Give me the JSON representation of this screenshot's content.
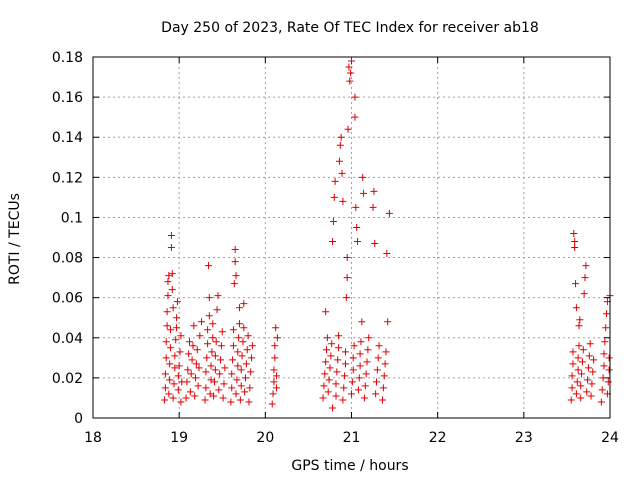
{
  "chart_data": {
    "type": "scatter",
    "title": "Day 250 of 2023, Rate Of TEC Index for receiver ab18",
    "xlabel": "GPS time / hours",
    "ylabel": "ROTI / TECUs",
    "xlim": [
      18,
      24
    ],
    "ylim": [
      0,
      0.18
    ],
    "x_ticks": [
      "18",
      "19",
      "20",
      "21",
      "22",
      "23",
      "24"
    ],
    "y_ticks": [
      "0",
      "0.02",
      "0.04",
      "0.06",
      "0.08",
      "0.1",
      "0.12",
      "0.14",
      "0.16",
      "0.18"
    ],
    "grid": true,
    "marker": "+",
    "color": "#e00000",
    "series": [
      {
        "points": [
          [
            18.83,
            0.009
          ],
          [
            18.84,
            0.015
          ],
          [
            18.84,
            0.022
          ],
          [
            18.85,
            0.03
          ],
          [
            18.85,
            0.038
          ],
          [
            18.86,
            0.046
          ],
          [
            18.86,
            0.053
          ],
          [
            18.87,
            0.061
          ],
          [
            18.87,
            0.068
          ],
          [
            18.88,
            0.071
          ],
          [
            18.88,
            0.012
          ],
          [
            18.89,
            0.019
          ],
          [
            18.89,
            0.027
          ],
          [
            18.9,
            0.035
          ],
          [
            18.9,
            0.044
          ],
          [
            18.91,
            0.085
          ],
          [
            18.91,
            0.091
          ],
          [
            18.92,
            0.072
          ],
          [
            18.92,
            0.064
          ],
          [
            18.93,
            0.055
          ],
          [
            18.93,
            0.01
          ],
          [
            18.94,
            0.017
          ],
          [
            18.95,
            0.025
          ],
          [
            18.95,
            0.031
          ],
          [
            18.96,
            0.039
          ],
          [
            18.97,
            0.045
          ],
          [
            18.97,
            0.05
          ],
          [
            18.98,
            0.058
          ],
          [
            18.99,
            0.014
          ],
          [
            18.99,
            0.021
          ],
          [
            19.0,
            0.026
          ],
          [
            19.01,
            0.033
          ],
          [
            19.02,
            0.041
          ],
          [
            19.02,
            0.008
          ],
          [
            19.03,
            0.018
          ],
          [
            19.08,
            0.01
          ],
          [
            19.09,
            0.018
          ],
          [
            19.1,
            0.024
          ],
          [
            19.11,
            0.032
          ],
          [
            19.12,
            0.038
          ],
          [
            19.13,
            0.013
          ],
          [
            19.14,
            0.022
          ],
          [
            19.15,
            0.029
          ],
          [
            19.16,
            0.036
          ],
          [
            19.17,
            0.046
          ],
          [
            19.18,
            0.011
          ],
          [
            19.19,
            0.02
          ],
          [
            19.2,
            0.027
          ],
          [
            19.21,
            0.034
          ],
          [
            19.22,
            0.016
          ],
          [
            19.23,
            0.025
          ],
          [
            19.24,
            0.041
          ],
          [
            19.26,
            0.048
          ],
          [
            19.3,
            0.009
          ],
          [
            19.31,
            0.015
          ],
          [
            19.31,
            0.023
          ],
          [
            19.32,
            0.03
          ],
          [
            19.33,
            0.037
          ],
          [
            19.33,
            0.044
          ],
          [
            19.34,
            0.076
          ],
          [
            19.35,
            0.06
          ],
          [
            19.35,
            0.051
          ],
          [
            19.36,
            0.012
          ],
          [
            19.37,
            0.019
          ],
          [
            19.37,
            0.026
          ],
          [
            19.38,
            0.033
          ],
          [
            19.39,
            0.04
          ],
          [
            19.39,
            0.047
          ],
          [
            19.4,
            0.011
          ],
          [
            19.41,
            0.018
          ],
          [
            19.42,
            0.024
          ],
          [
            19.42,
            0.031
          ],
          [
            19.43,
            0.038
          ],
          [
            19.44,
            0.054
          ],
          [
            19.45,
            0.061
          ],
          [
            19.46,
            0.014
          ],
          [
            19.47,
            0.022
          ],
          [
            19.48,
            0.029
          ],
          [
            19.49,
            0.036
          ],
          [
            19.5,
            0.043
          ],
          [
            19.51,
            0.01
          ],
          [
            19.52,
            0.017
          ],
          [
            19.53,
            0.025
          ],
          [
            19.6,
            0.008
          ],
          [
            19.61,
            0.015
          ],
          [
            19.61,
            0.022
          ],
          [
            19.62,
            0.029
          ],
          [
            19.63,
            0.036
          ],
          [
            19.63,
            0.044
          ],
          [
            19.64,
            0.067
          ],
          [
            19.65,
            0.078
          ],
          [
            19.65,
            0.084
          ],
          [
            19.66,
            0.071
          ],
          [
            19.66,
            0.012
          ],
          [
            19.67,
            0.019
          ],
          [
            19.68,
            0.026
          ],
          [
            19.68,
            0.033
          ],
          [
            19.69,
            0.04
          ],
          [
            19.7,
            0.047
          ],
          [
            19.7,
            0.055
          ],
          [
            19.71,
            0.009
          ],
          [
            19.72,
            0.016
          ],
          [
            19.72,
            0.024
          ],
          [
            19.73,
            0.031
          ],
          [
            19.74,
            0.038
          ],
          [
            19.75,
            0.045
          ],
          [
            19.75,
            0.057
          ],
          [
            19.76,
            0.013
          ],
          [
            19.77,
            0.02
          ],
          [
            19.78,
            0.027
          ],
          [
            19.79,
            0.034
          ],
          [
            19.8,
            0.041
          ],
          [
            19.81,
            0.008
          ],
          [
            19.82,
            0.015
          ],
          [
            19.83,
            0.023
          ],
          [
            19.84,
            0.03
          ],
          [
            19.85,
            0.036
          ],
          [
            20.08,
            0.007
          ],
          [
            20.09,
            0.012
          ],
          [
            20.1,
            0.018
          ],
          [
            20.1,
            0.024
          ],
          [
            20.11,
            0.03
          ],
          [
            20.11,
            0.036
          ],
          [
            20.12,
            0.045
          ],
          [
            20.13,
            0.015
          ],
          [
            20.13,
            0.021
          ],
          [
            20.14,
            0.04
          ],
          [
            20.67,
            0.01
          ],
          [
            20.68,
            0.016
          ],
          [
            20.69,
            0.022
          ],
          [
            20.7,
            0.028
          ],
          [
            20.7,
            0.053
          ],
          [
            20.71,
            0.034
          ],
          [
            20.72,
            0.04
          ],
          [
            20.73,
            0.013
          ],
          [
            20.74,
            0.019
          ],
          [
            20.75,
            0.025
          ],
          [
            20.76,
            0.031
          ],
          [
            20.77,
            0.037
          ],
          [
            20.78,
            0.005
          ],
          [
            20.78,
            0.088
          ],
          [
            20.79,
            0.098
          ],
          [
            20.8,
            0.11
          ],
          [
            20.81,
            0.118
          ],
          [
            20.82,
            0.011
          ],
          [
            20.82,
            0.017
          ],
          [
            20.83,
            0.023
          ],
          [
            20.84,
            0.029
          ],
          [
            20.85,
            0.035
          ],
          [
            20.85,
            0.041
          ],
          [
            20.86,
            0.128
          ],
          [
            20.87,
            0.136
          ],
          [
            20.88,
            0.14
          ],
          [
            20.89,
            0.122
          ],
          [
            20.9,
            0.108
          ],
          [
            20.9,
            0.009
          ],
          [
            20.91,
            0.015
          ],
          [
            20.92,
            0.021
          ],
          [
            20.93,
            0.027
          ],
          [
            20.93,
            0.033
          ],
          [
            20.94,
            0.06
          ],
          [
            20.95,
            0.07
          ],
          [
            20.95,
            0.08
          ],
          [
            20.96,
            0.144
          ],
          [
            20.97,
            0.175
          ],
          [
            20.98,
            0.168
          ],
          [
            20.99,
            0.172
          ],
          [
            21.0,
            0.178
          ],
          [
            21.0,
            0.012
          ],
          [
            21.01,
            0.018
          ],
          [
            21.02,
            0.024
          ],
          [
            21.02,
            0.03
          ],
          [
            21.03,
            0.036
          ],
          [
            21.04,
            0.16
          ],
          [
            21.04,
            0.15
          ],
          [
            21.05,
            0.105
          ],
          [
            21.06,
            0.095
          ],
          [
            21.07,
            0.088
          ],
          [
            21.08,
            0.014
          ],
          [
            21.09,
            0.02
          ],
          [
            21.1,
            0.026
          ],
          [
            21.1,
            0.032
          ],
          [
            21.11,
            0.038
          ],
          [
            21.12,
            0.048
          ],
          [
            21.13,
            0.12
          ],
          [
            21.14,
            0.112
          ],
          [
            21.15,
            0.01
          ],
          [
            21.16,
            0.016
          ],
          [
            21.17,
            0.022
          ],
          [
            21.18,
            0.028
          ],
          [
            21.19,
            0.034
          ],
          [
            21.2,
            0.04
          ],
          [
            21.25,
            0.105
          ],
          [
            21.26,
            0.113
          ],
          [
            21.27,
            0.087
          ],
          [
            21.28,
            0.012
          ],
          [
            21.29,
            0.018
          ],
          [
            21.3,
            0.024
          ],
          [
            21.31,
            0.03
          ],
          [
            21.32,
            0.036
          ],
          [
            21.36,
            0.009
          ],
          [
            21.37,
            0.015
          ],
          [
            21.38,
            0.021
          ],
          [
            21.39,
            0.027
          ],
          [
            21.4,
            0.033
          ],
          [
            21.41,
            0.082
          ],
          [
            21.42,
            0.048
          ],
          [
            21.44,
            0.102
          ],
          [
            23.55,
            0.009
          ],
          [
            23.56,
            0.015
          ],
          [
            23.56,
            0.021
          ],
          [
            23.57,
            0.027
          ],
          [
            23.57,
            0.033
          ],
          [
            23.58,
            0.092
          ],
          [
            23.59,
            0.088
          ],
          [
            23.59,
            0.085
          ],
          [
            23.6,
            0.067
          ],
          [
            23.61,
            0.055
          ],
          [
            23.61,
            0.012
          ],
          [
            23.62,
            0.018
          ],
          [
            23.63,
            0.024
          ],
          [
            23.63,
            0.03
          ],
          [
            23.64,
            0.036
          ],
          [
            23.64,
            0.046
          ],
          [
            23.65,
            0.049
          ],
          [
            23.66,
            0.01
          ],
          [
            23.66,
            0.016
          ],
          [
            23.67,
            0.022
          ],
          [
            23.68,
            0.028
          ],
          [
            23.69,
            0.034
          ],
          [
            23.7,
            0.062
          ],
          [
            23.71,
            0.07
          ],
          [
            23.72,
            0.076
          ],
          [
            23.73,
            0.013
          ],
          [
            23.74,
            0.019
          ],
          [
            23.75,
            0.025
          ],
          [
            23.76,
            0.031
          ],
          [
            23.77,
            0.037
          ],
          [
            23.78,
            0.011
          ],
          [
            23.79,
            0.017
          ],
          [
            23.8,
            0.023
          ],
          [
            23.81,
            0.029
          ],
          [
            23.9,
            0.008
          ],
          [
            23.91,
            0.014
          ],
          [
            23.92,
            0.02
          ],
          [
            23.93,
            0.026
          ],
          [
            23.93,
            0.032
          ],
          [
            23.94,
            0.038
          ],
          [
            23.95,
            0.045
          ],
          [
            23.96,
            0.052
          ],
          [
            23.97,
            0.058
          ],
          [
            23.97,
            0.012
          ],
          [
            23.98,
            0.018
          ],
          [
            23.99,
            0.024
          ],
          [
            23.99,
            0.03
          ],
          [
            24.0,
            0.061
          ]
        ]
      }
    ]
  }
}
